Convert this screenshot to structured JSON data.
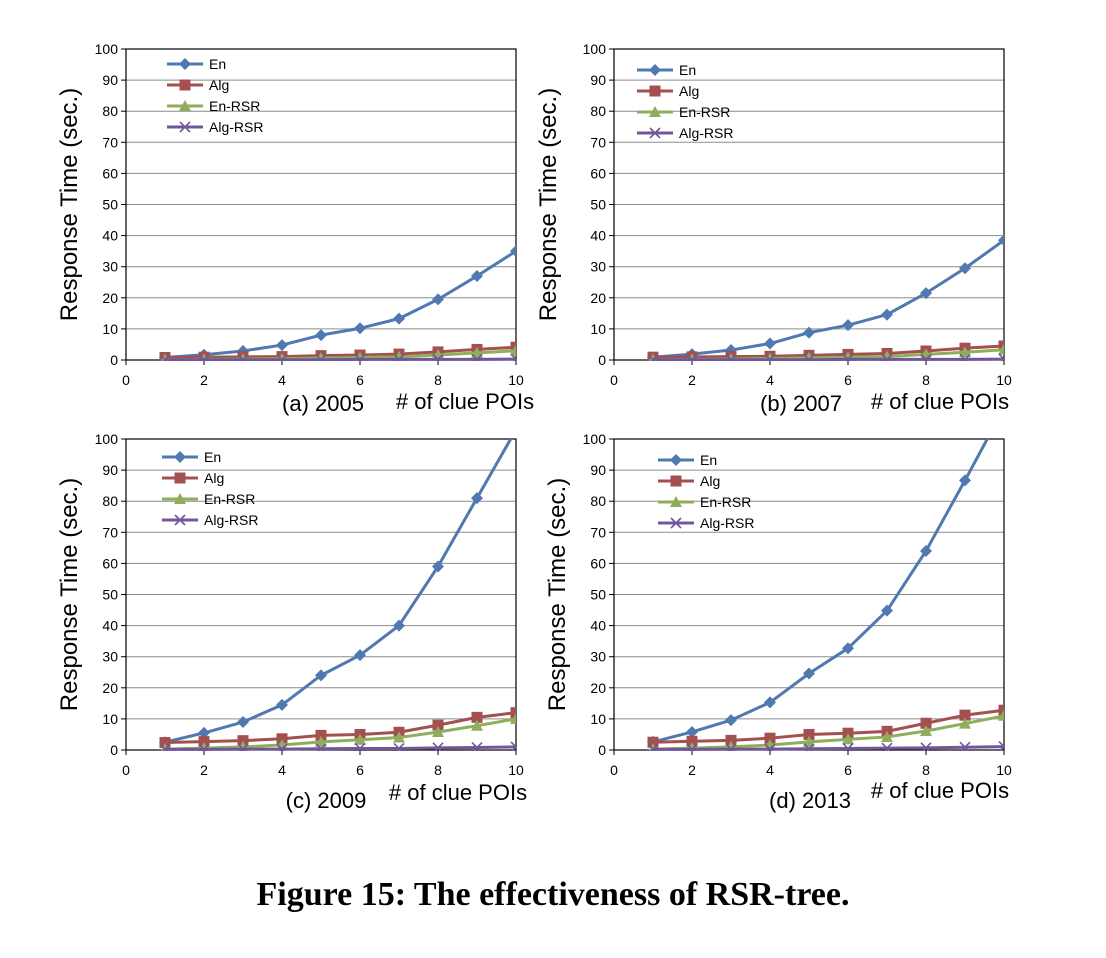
{
  "figure": {
    "caption": "Figure 15: The effectiveness of RSR-tree."
  },
  "colors": {
    "En": "#4f79b0",
    "Alg": "#a3504f",
    "En-RSR": "#8fae5b",
    "Alg-RSR": "#71579a"
  },
  "chart_data": [
    {
      "type": "line",
      "subtitle": "(a) 2005",
      "xlabel": "# of clue POIs",
      "ylabel": "Response Time (sec.)",
      "xlim": [
        0,
        10
      ],
      "ylim": [
        0,
        100
      ],
      "xticks": [
        0,
        2,
        4,
        6,
        8,
        10
      ],
      "yticks": [
        0,
        10,
        20,
        30,
        40,
        50,
        60,
        70,
        80,
        90,
        100
      ],
      "grid": "horizontal",
      "legend": "top-left",
      "x": [
        1,
        2,
        3,
        4,
        5,
        6,
        7,
        8,
        9,
        10
      ],
      "series": [
        {
          "name": "En",
          "marker": "diamond",
          "values": [
            0.8,
            1.7,
            2.9,
            4.8,
            8.0,
            10.2,
            13.3,
            19.5,
            27.0,
            35.0
          ]
        },
        {
          "name": "Alg",
          "marker": "square",
          "values": [
            0.8,
            0.9,
            1.0,
            1.1,
            1.4,
            1.6,
            1.9,
            2.6,
            3.4,
            4.1
          ]
        },
        {
          "name": "En-RSR",
          "marker": "triangle",
          "values": [
            0.1,
            0.2,
            0.3,
            0.4,
            0.6,
            0.8,
            1.0,
            1.6,
            2.3,
            3.0
          ]
        },
        {
          "name": "Alg-RSR",
          "marker": "x",
          "values": [
            0.1,
            0.1,
            0.1,
            0.1,
            0.1,
            0.2,
            0.2,
            0.2,
            0.2,
            0.3
          ]
        }
      ]
    },
    {
      "type": "line",
      "subtitle": "(b) 2007",
      "xlabel": "# of clue POIs",
      "ylabel": "Response Time (sec.)",
      "xlim": [
        0,
        10
      ],
      "ylim": [
        0,
        100
      ],
      "xticks": [
        0,
        2,
        4,
        6,
        8,
        10
      ],
      "yticks": [
        0,
        10,
        20,
        30,
        40,
        50,
        60,
        70,
        80,
        90,
        100
      ],
      "grid": "horizontal",
      "legend": "top-left",
      "x": [
        1,
        2,
        3,
        4,
        5,
        6,
        7,
        8,
        9,
        10
      ],
      "series": [
        {
          "name": "En",
          "marker": "diamond",
          "values": [
            0.9,
            1.9,
            3.2,
            5.3,
            8.8,
            11.2,
            14.6,
            21.5,
            29.5,
            38.5
          ]
        },
        {
          "name": "Alg",
          "marker": "square",
          "values": [
            0.9,
            1.0,
            1.1,
            1.2,
            1.5,
            1.8,
            2.1,
            2.9,
            3.8,
            4.5
          ]
        },
        {
          "name": "En-RSR",
          "marker": "triangle",
          "values": [
            0.1,
            0.2,
            0.3,
            0.5,
            0.7,
            0.9,
            1.1,
            1.8,
            2.5,
            3.3
          ]
        },
        {
          "name": "Alg-RSR",
          "marker": "x",
          "values": [
            0.1,
            0.1,
            0.1,
            0.1,
            0.1,
            0.2,
            0.2,
            0.2,
            0.2,
            0.3
          ]
        }
      ]
    },
    {
      "type": "line",
      "subtitle": "(c) 2009",
      "xlabel": "# of clue POIs",
      "ylabel": "Response Time (sec.)",
      "xlim": [
        0,
        10
      ],
      "ylim": [
        0,
        100
      ],
      "xticks": [
        0,
        2,
        4,
        6,
        8,
        10
      ],
      "yticks": [
        0,
        10,
        20,
        30,
        40,
        50,
        60,
        70,
        80,
        90,
        100
      ],
      "grid": "horizontal",
      "legend": "top-left",
      "x": [
        1,
        2,
        3,
        4,
        5,
        6,
        7,
        8,
        9,
        10
      ],
      "series": [
        {
          "name": "En",
          "marker": "diamond",
          "values": [
            2.5,
            5.5,
            9.0,
            14.5,
            24.0,
            30.5,
            40.0,
            59.0,
            81.0,
            103.0
          ]
        },
        {
          "name": "Alg",
          "marker": "square",
          "values": [
            2.4,
            2.7,
            3.0,
            3.6,
            4.7,
            5.0,
            5.7,
            8.0,
            10.5,
            12.0
          ]
        },
        {
          "name": "En-RSR",
          "marker": "triangle",
          "values": [
            0.3,
            0.6,
            1.0,
            1.6,
            2.6,
            3.3,
            4.0,
            5.8,
            7.8,
            10.0
          ]
        },
        {
          "name": "Alg-RSR",
          "marker": "x",
          "values": [
            0.2,
            0.2,
            0.3,
            0.3,
            0.4,
            0.5,
            0.5,
            0.7,
            0.8,
            1.0
          ]
        }
      ]
    },
    {
      "type": "line",
      "subtitle": "(d) 2013",
      "xlabel": "# of clue POIs",
      "ylabel": "Response Time (sec.)",
      "xlim": [
        0,
        10
      ],
      "ylim": [
        0,
        100
      ],
      "xticks": [
        0,
        2,
        4,
        6,
        8,
        10
      ],
      "yticks": [
        0,
        10,
        20,
        30,
        40,
        50,
        60,
        70,
        80,
        90,
        100
      ],
      "grid": "horizontal",
      "legend": "top-left",
      "x": [
        1,
        2,
        3,
        4,
        5,
        6,
        7,
        8,
        9,
        10
      ],
      "series": [
        {
          "name": "En",
          "marker": "diamond",
          "values": [
            2.6,
            5.8,
            9.6,
            15.3,
            24.6,
            32.7,
            44.8,
            64.0,
            86.7,
            110.0
          ]
        },
        {
          "name": "Alg",
          "marker": "square",
          "values": [
            2.5,
            2.8,
            3.1,
            3.8,
            5.0,
            5.4,
            6.0,
            8.6,
            11.2,
            12.8
          ]
        },
        {
          "name": "En-RSR",
          "marker": "triangle",
          "values": [
            0.3,
            0.6,
            1.0,
            1.6,
            2.6,
            3.4,
            4.2,
            6.1,
            8.5,
            11.0
          ]
        },
        {
          "name": "Alg-RSR",
          "marker": "x",
          "values": [
            0.2,
            0.2,
            0.3,
            0.3,
            0.4,
            0.5,
            0.6,
            0.7,
            0.9,
            1.1
          ]
        }
      ]
    }
  ]
}
